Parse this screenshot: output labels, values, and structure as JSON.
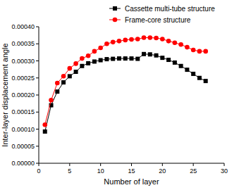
{
  "chart_data": {
    "type": "line",
    "x_label": "Number of layer",
    "y_label": "Inter-layer displacement angle",
    "x": [
      1,
      2,
      3,
      4,
      5,
      6,
      7,
      8,
      9,
      10,
      11,
      12,
      13,
      14,
      15,
      16,
      17,
      18,
      19,
      20,
      21,
      22,
      23,
      24,
      25,
      26,
      27
    ],
    "series": [
      {
        "name": "Cassette multi-tube structure",
        "color": "#000000",
        "marker": "square",
        "line_style": "solid",
        "values": [
          9.3e-05,
          0.00017,
          0.00021,
          0.000237,
          0.000255,
          0.000268,
          0.000285,
          0.000293,
          0.000298,
          0.000302,
          0.000305,
          0.000306,
          0.000307,
          0.000307,
          0.000307,
          0.000306,
          0.00032,
          0.000319,
          0.000316,
          0.000309,
          0.000303,
          0.000295,
          0.000285,
          0.000274,
          0.000262,
          0.00025,
          0.000241
        ]
      },
      {
        "name": "Frame-core structure",
        "color": "#ff0000",
        "marker": "circle",
        "line_style": "solid",
        "values": [
          0.000113,
          0.000185,
          0.000235,
          0.000255,
          0.000278,
          0.000292,
          0.000307,
          0.000315,
          0.000328,
          0.000338,
          0.00035,
          0.000355,
          0.000358,
          0.000361,
          0.000363,
          0.000364,
          0.000368,
          0.000368,
          0.000367,
          0.000364,
          0.000358,
          0.000353,
          0.000348,
          0.00034,
          0.000332,
          0.000328,
          0.000328
        ]
      }
    ],
    "xlim": [
      0,
      30
    ],
    "xticks": [
      0,
      5,
      10,
      15,
      20,
      25,
      30
    ],
    "ylim": [
      0,
      0.0004
    ],
    "yticks": [
      {
        "value": 0,
        "label": "0.00000"
      },
      {
        "value": 5e-05,
        "label": "0.00005"
      },
      {
        "value": 0.0001,
        "label": "0.00010"
      },
      {
        "value": 0.00015,
        "label": "0.00015"
      },
      {
        "value": 0.0002,
        "label": "0.00020"
      },
      {
        "value": 0.00025,
        "label": "0.00025"
      },
      {
        "value": 0.0003,
        "label": "0.00030"
      },
      {
        "value": 0.00035,
        "label": "0.00035"
      },
      {
        "value": 0.0004,
        "label": "0.00040"
      }
    ],
    "grid": false,
    "legend": "upper right"
  }
}
